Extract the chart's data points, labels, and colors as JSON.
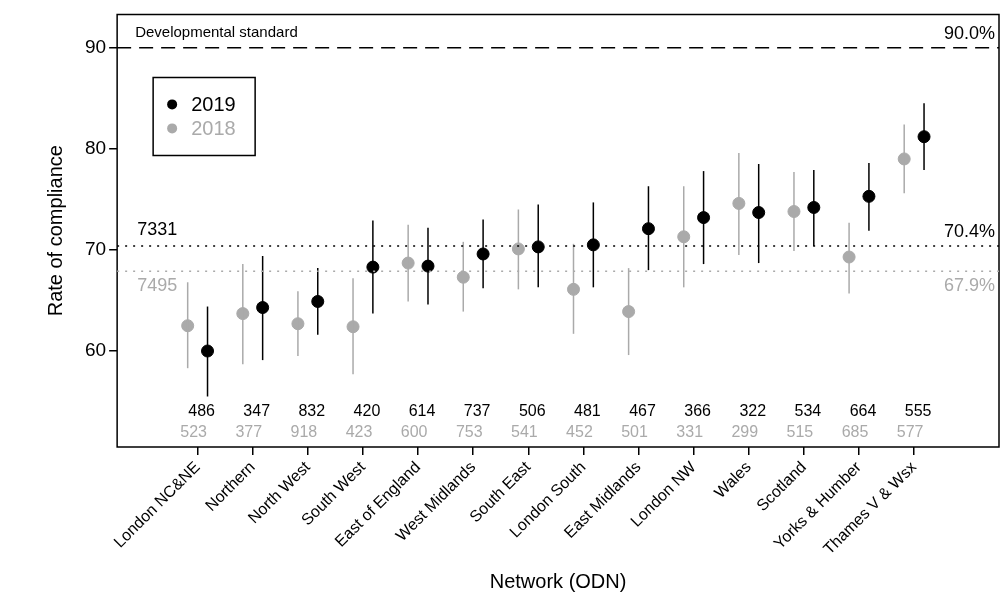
{
  "chart_data": {
    "type": "scatter",
    "xlabel": "Network (ODN)",
    "ylabel": "Rate of compliance",
    "categories": [
      "London NC&NE",
      "Northern",
      "North West",
      "South West",
      "East of England",
      "West Midlands",
      "South East",
      "London South",
      "East Midlands",
      "London NW",
      "Wales",
      "Scotland",
      "Yorks & Humber",
      "Thames V & Wsx"
    ],
    "series": [
      {
        "name": "2019",
        "color": "#000000",
        "values": [
          60.0,
          64.3,
          64.9,
          68.3,
          68.4,
          69.6,
          70.3,
          70.5,
          72.1,
          73.2,
          73.7,
          74.2,
          75.3,
          81.2
        ],
        "errors": [
          [
            55.5,
            64.4
          ],
          [
            59.1,
            69.4
          ],
          [
            61.6,
            68.2
          ],
          [
            63.7,
            72.9
          ],
          [
            64.6,
            72.2
          ],
          [
            66.2,
            73.0
          ],
          [
            66.3,
            74.5
          ],
          [
            66.3,
            74.7
          ],
          [
            68.0,
            76.3
          ],
          [
            68.6,
            77.8
          ],
          [
            68.7,
            78.5
          ],
          [
            70.4,
            77.9
          ],
          [
            71.9,
            78.6
          ],
          [
            77.9,
            84.5
          ]
        ]
      },
      {
        "name": "2018",
        "color": "#aaaaaa",
        "values": [
          62.5,
          63.7,
          62.7,
          62.4,
          68.7,
          67.3,
          70.1,
          66.1,
          63.9,
          71.3,
          74.6,
          73.8,
          69.3,
          79.0
        ],
        "errors": [
          [
            58.3,
            66.8
          ],
          [
            58.7,
            68.6
          ],
          [
            59.5,
            65.9
          ],
          [
            57.7,
            67.2
          ],
          [
            64.9,
            72.5
          ],
          [
            63.9,
            70.8
          ],
          [
            66.1,
            74.0
          ],
          [
            61.7,
            70.6
          ],
          [
            59.6,
            68.2
          ],
          [
            66.3,
            76.3
          ],
          [
            69.5,
            79.6
          ],
          [
            69.9,
            77.7
          ],
          [
            65.7,
            72.7
          ],
          [
            75.6,
            82.4
          ]
        ]
      }
    ],
    "ylim": [
      50.5,
      93.3
    ],
    "yticks": [
      60,
      70,
      80,
      90
    ],
    "ref_lines": [
      {
        "axis": "y",
        "value": 90,
        "label": "90.0%",
        "color": "#000000",
        "line_style": "dashed"
      },
      {
        "axis": "y",
        "value": 70.4,
        "label": "70.4%",
        "color": "#000000",
        "line_style": "dotted"
      },
      {
        "axis": "y",
        "value": 67.9,
        "label": "67.9%",
        "color": "#aaaaaa",
        "line_style": "dotted"
      }
    ],
    "annotations": [
      {
        "text": "Developmental standard",
        "y": 90
      },
      {
        "text": "7331",
        "y": 70.4
      },
      {
        "text": "7495",
        "y": 67.9
      },
      "486",
      "347",
      "832",
      "420",
      "614",
      "737",
      "506",
      "481",
      "467",
      "366",
      "322",
      "534",
      "664",
      "555",
      "523",
      "377",
      "918",
      "423",
      "600",
      "753",
      "541",
      "452",
      "501",
      "331",
      "299",
      "515",
      "685",
      "577"
    ],
    "legend": "top left",
    "marker": "circle",
    "grid": false
  }
}
